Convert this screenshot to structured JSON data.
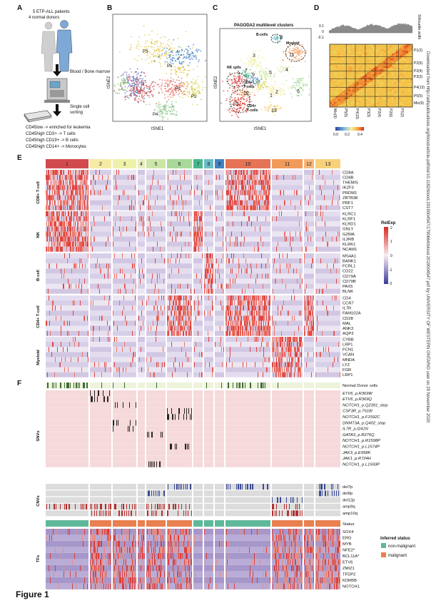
{
  "panel_labels": {
    "A": "A",
    "B": "B",
    "C": "C",
    "D": "D",
    "E": "E",
    "F": "F"
  },
  "panelA": {
    "patients": "5 ETP-ALL patients",
    "donors": "4 normal donors",
    "source": "Blood / Bone marrow",
    "sorting_1": "Single cell",
    "sorting_2": "sorting",
    "lines": [
      "CD45low -> enriched for leukemia",
      "CD45high CD3+ -> T cells",
      "CD45high CD19+ -> B cells",
      "CD45high CD14+ -> Monocytes"
    ]
  },
  "panelB": {
    "xlabel": "tSNE1",
    "ylabel": "tSNE2",
    "clusters": [
      {
        "label": "P1",
        "color": "#e57368"
      },
      {
        "label": "P2",
        "color": "#d8d35a"
      },
      {
        "label": "P3",
        "color": "#e3c84c"
      },
      {
        "label": "P4",
        "color": "#8cc68a"
      },
      {
        "label": "P5",
        "color": "#4f88c7"
      }
    ]
  },
  "panelC": {
    "title": "PAGODA2 multilevel clusters",
    "xlabel": "tSNE1",
    "ylabel": "tSNE2",
    "annotations": {
      "bcells": "B-cells",
      "myeloid": "Myeloid",
      "nk": "NK cells",
      "cd8_1": "CD8+",
      "cd8_2": "T-cells",
      "cd4_1": "CD4+",
      "cd4_2": "T-cells"
    },
    "numbers": [
      "1",
      "2",
      "3",
      "4",
      "5",
      "6",
      "7",
      "8",
      "9",
      "10",
      "11",
      "12",
      "13"
    ]
  },
  "panelD": {
    "ticks": [
      "0.1",
      "0",
      "-0.1"
    ],
    "side_label": "Silhouette width",
    "row_labels": [
      "P1(2)",
      "P2(6)",
      "P2(4)",
      "P3(3)",
      "P4(13)",
      "P5(5)",
      "Mix(9)"
    ],
    "col_labels": [
      "Mix(9)",
      "P5(5)",
      "P4(13)",
      "P3(3)",
      "P2(4)",
      "P2(6)",
      "P1(2)"
    ],
    "scale_labels": [
      "0.0",
      "0.2",
      "0.4"
    ]
  },
  "panelE": {
    "clusters": [
      {
        "n": "1",
        "color": "#d14b4e"
      },
      {
        "n": "2",
        "color": "#f5eba5"
      },
      {
        "n": "3",
        "color": "#eef1a8"
      },
      {
        "n": "4",
        "color": "#e8ecc0"
      },
      {
        "n": "5",
        "color": "#cde6a8"
      },
      {
        "n": "6",
        "color": "#a8d99a"
      },
      {
        "n": "7",
        "color": "#48b88a"
      },
      {
        "n": "8",
        "color": "#6cbcc6"
      },
      {
        "n": "9",
        "color": "#3f83c2"
      },
      {
        "n": "10",
        "color": "#e57356"
      },
      {
        "n": "11",
        "color": "#f19b5a"
      },
      {
        "n": "12",
        "color": "#f7b878"
      },
      {
        "n": "13",
        "color": "#f7d17a"
      }
    ],
    "groups": [
      {
        "name": "CD8+ T-cell",
        "genes": [
          "CD8A",
          "CD8B",
          "THEMIS",
          "IKZF3",
          "PRDM1",
          "ZBTB38",
          "PRF1",
          "CST7"
        ]
      },
      {
        "name": "NK",
        "genes": [
          "KLRC1",
          "KLRF1",
          "KLRD1",
          "GNLY",
          "GZMA",
          "IL2RB",
          "KLRK1",
          "NCAM1"
        ]
      },
      {
        "name": "B-cell",
        "genes": [
          "MS4A1",
          "BANK1",
          "FCRL1",
          "CD22",
          "CD79A",
          "CD79B",
          "PAX5",
          "BLNK"
        ]
      },
      {
        "name": "CD4+ T-cell",
        "genes": [
          "CD4",
          "CCR7",
          "IL7R",
          "FAM102A",
          "CD28",
          "MAL",
          "ANK3",
          "AQP3"
        ]
      },
      {
        "name": "Myeloid",
        "genes": [
          "CYBB",
          "LRP1",
          "FCN1",
          "VCAN",
          "MNDA",
          "LYZ",
          "FGR",
          "LRP1"
        ]
      }
    ],
    "legend": {
      "title": "RelExp",
      "ticks": [
        "2",
        "1",
        "0",
        "-1",
        "-2"
      ]
    }
  },
  "panelF": {
    "normal": "Normal Donor cells",
    "snv_group": "SNVs",
    "snvs": [
      "ETV6_p.R369W",
      "ETV6_p.R369Q",
      "NOTCH1_p.Q2391_stop",
      "CSF3R_p.T618I",
      "NOTCH1_p.F1592C",
      "DNMT3A_p.Q402_stop",
      "IL7R_p.I241N",
      "GATA3_p.R276Q",
      "NOTCH1_p.R1598P",
      "NOTCH1_p.L1574P",
      "JAK3_p.E958K",
      "JAK1_p.R724H",
      "NOTCH1_p.L1593P"
    ],
    "cnv_group": "CNVs",
    "cnvs": [
      "del7p",
      "del9p",
      "del12p",
      "amp9q",
      "amp10q"
    ],
    "status": "Status",
    "tf_group": "TFs",
    "tfs": [
      "SOX4",
      "ERG",
      "MYB",
      "NFE2*",
      "BCL11A*",
      "ETV6",
      "ZMIZ1",
      "TFDP2",
      "KDM5B",
      "NOTCH1"
    ],
    "legend_title": "Inferred status",
    "legend_items": [
      {
        "label": "non-malignant",
        "color": "#5fb89a"
      },
      {
        "label": "malignant",
        "color": "#e8804f"
      }
    ]
  },
  "watermark": "Downloaded from http://ashpublications.org/blood/article-pdf/doi/10.1182/blood.2019004547/1790664/blood.2019004547.pdf by UNIVERSITY OF WESTERN ONTARIO user on 29 November 2020",
  "figure_caption": "Figure 1"
}
